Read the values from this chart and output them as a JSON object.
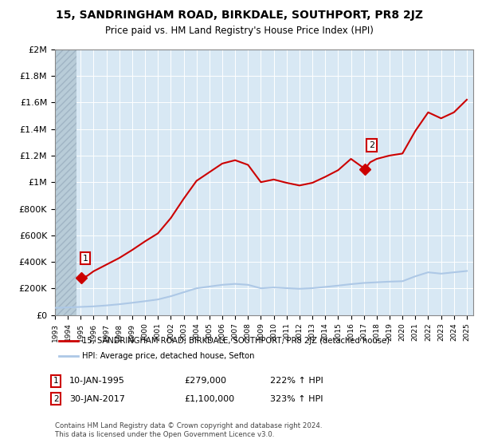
{
  "title": "15, SANDRINGHAM ROAD, BIRKDALE, SOUTHPORT, PR8 2JZ",
  "subtitle": "Price paid vs. HM Land Registry's House Price Index (HPI)",
  "sale1_year": 1995.04,
  "sale1_price": 279000,
  "sale2_year": 2017.08,
  "sale2_price": 1100000,
  "hpi_line_color": "#adc8e6",
  "price_line_color": "#cc0000",
  "sale_marker_color": "#cc0000",
  "background_plot": "#d8e8f4",
  "grid_color": "#ffffff",
  "legend_label1": "15, SANDRINGHAM ROAD, BIRKDALE, SOUTHPORT, PR8 2JZ (detached house)",
  "legend_label2": "HPI: Average price, detached house, Sefton",
  "footer": "Contains HM Land Registry data © Crown copyright and database right 2024.\nThis data is licensed under the Open Government Licence v3.0.",
  "ylim_max": 2000000,
  "yticks": [
    0,
    200000,
    400000,
    600000,
    800000,
    1000000,
    1200000,
    1400000,
    1600000,
    1800000,
    2000000
  ],
  "ytick_labels": [
    "£0",
    "£200K",
    "£400K",
    "£600K",
    "£800K",
    "£1M",
    "£1.2M",
    "£1.4M",
    "£1.6M",
    "£1.8M",
    "£2M"
  ],
  "xmin": 1993.0,
  "xmax": 2025.5,
  "years_hpi": [
    1993,
    1994,
    1995,
    1996,
    1997,
    1998,
    1999,
    2000,
    2001,
    2002,
    2003,
    2004,
    2005,
    2006,
    2007,
    2008,
    2009,
    2010,
    2011,
    2012,
    2013,
    2014,
    2015,
    2016,
    2017,
    2018,
    2019,
    2020,
    2021,
    2022,
    2023,
    2024,
    2025
  ],
  "hpi_values": [
    55000,
    58000,
    62000,
    66000,
    73000,
    82000,
    93000,
    105000,
    118000,
    142000,
    172000,
    202000,
    215000,
    228000,
    235000,
    228000,
    202000,
    208000,
    203000,
    198000,
    203000,
    212000,
    222000,
    233000,
    242000,
    247000,
    252000,
    255000,
    292000,
    322000,
    312000,
    322000,
    332000
  ],
  "years_price": [
    1995.04,
    1995.5,
    1996,
    1997,
    1998,
    1999,
    2000,
    2001,
    2002,
    2003,
    2004,
    2005,
    2006,
    2007,
    2008,
    2009,
    2010,
    2011,
    2012,
    2013,
    2014,
    2015,
    2016,
    2017.08,
    2017.5,
    2018,
    2019,
    2020,
    2021,
    2022,
    2023,
    2024,
    2025
  ],
  "price_values": [
    279000,
    295000,
    330000,
    380000,
    430000,
    490000,
    555000,
    615000,
    730000,
    875000,
    1010000,
    1075000,
    1140000,
    1165000,
    1130000,
    1000000,
    1020000,
    995000,
    975000,
    995000,
    1040000,
    1090000,
    1175000,
    1100000,
    1150000,
    1175000,
    1200000,
    1215000,
    1385000,
    1525000,
    1480000,
    1525000,
    1620000
  ]
}
